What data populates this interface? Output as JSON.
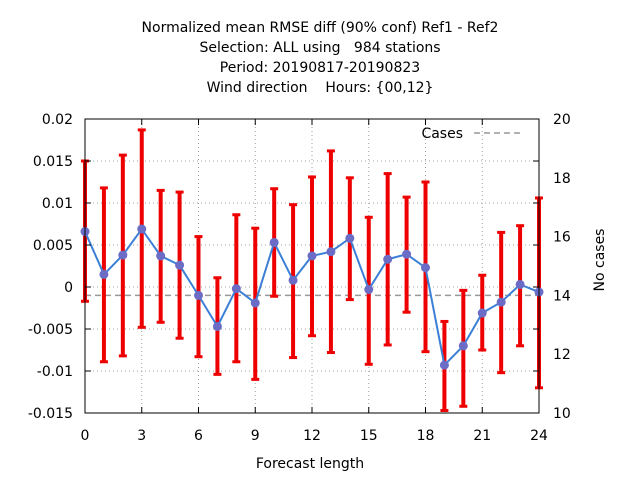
{
  "chart_data": {
    "type": "line",
    "title_lines": [
      "Normalized mean RMSE diff (90% conf) Ref1 - Ref2",
      "Selection: ALL using   984 stations",
      "Period: 20190817-20190823",
      "Wind direction    Hours: {00,12}"
    ],
    "xlabel": "Forecast length",
    "ylabel": "",
    "y2label": "No cases",
    "xlim": [
      0,
      24
    ],
    "ylim": [
      -0.015,
      0.02
    ],
    "y2lim": [
      10,
      20
    ],
    "xticks": [
      "0",
      "3",
      "6",
      "9",
      "12",
      "15",
      "18",
      "21",
      "24"
    ],
    "yticks": [
      "-0.015",
      "-0.01",
      "-0.005",
      "0",
      "0.005",
      "0.01",
      "0.015",
      "0.02"
    ],
    "y2ticks": [
      "10",
      "12",
      "14",
      "16",
      "18",
      "20"
    ],
    "grid": true,
    "legend": {
      "position": "top-right",
      "entries": [
        "Cases"
      ]
    },
    "series": [
      {
        "x": [
          0,
          1,
          2,
          3,
          4,
          5,
          6,
          7,
          8,
          9,
          10,
          11,
          12,
          13,
          14,
          15,
          16,
          17,
          18,
          19,
          20,
          21,
          22,
          23,
          24
        ],
        "values": [
          0.0066,
          0.0015,
          0.0038,
          0.0069,
          0.0037,
          0.0026,
          -0.001,
          -0.0047,
          -0.0002,
          -0.0019,
          0.0053,
          0.0008,
          0.0037,
          0.0042,
          0.0058,
          -0.0003,
          0.0033,
          0.0039,
          0.0023,
          -0.0093,
          -0.007,
          -0.0031,
          -0.0018,
          0.0003,
          -0.0006
        ],
        "lower": [
          -0.0017,
          -0.0089,
          -0.0082,
          -0.0048,
          -0.0042,
          -0.0061,
          -0.0083,
          -0.0104,
          -0.0089,
          -0.011,
          -0.0011,
          -0.0084,
          -0.0058,
          -0.0078,
          -0.0015,
          -0.0092,
          -0.0069,
          -0.003,
          -0.0077,
          -0.0147,
          -0.0142,
          -0.0075,
          -0.0102,
          -0.007,
          -0.012
        ],
        "upper": [
          0.015,
          0.0118,
          0.0157,
          0.0187,
          0.0115,
          0.0113,
          0.006,
          0.0011,
          0.0086,
          0.007,
          0.0117,
          0.0098,
          0.0131,
          0.0162,
          0.013,
          0.0083,
          0.0135,
          0.0107,
          0.0125,
          -0.0041,
          -0.0004,
          0.0014,
          0.0065,
          0.0073,
          0.0106
        ]
      },
      {
        "name": "Cases",
        "axis": "right",
        "x": [
          0,
          24
        ],
        "values": [
          14,
          14
        ]
      }
    ],
    "colors": {
      "error_bars": "#ee0000",
      "line": "#3b7fd6",
      "points": "#6a6cc6",
      "cases": "#999999",
      "grid": "#a0a0a0"
    }
  }
}
